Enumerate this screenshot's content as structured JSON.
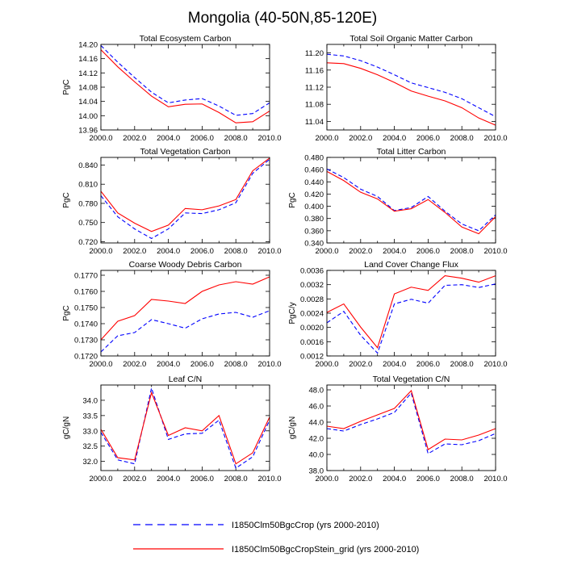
{
  "figure": {
    "title": "Mongolia (40-50N,85-120E)",
    "series_styles": [
      {
        "color": "#0000ff",
        "dash": true
      },
      {
        "color": "#ff0000",
        "dash": false
      }
    ],
    "legend": [
      "I1850Clm50BgcCrop (yrs 2000-2010)",
      "I1850Clm50BgcCropStein_grid (yrs 2000-2010)"
    ]
  },
  "chart_data": [
    {
      "type": "line",
      "title": "Total Ecosystem Carbon",
      "ylabel": "PgC",
      "x": [
        2000,
        2001,
        2002,
        2003,
        2004,
        2005,
        2006,
        2007,
        2008,
        2009,
        2010
      ],
      "xlim": [
        2000,
        2010
      ],
      "xticks": [
        2000,
        2002,
        2004,
        2006,
        2008,
        2010
      ],
      "xtick_labels": [
        "2000.0",
        "2002.0",
        "2004.0",
        "2006.0",
        "2008.0",
        "2010.0"
      ],
      "ylim": [
        13.96,
        14.2
      ],
      "yticks": [
        13.96,
        14.0,
        14.04,
        14.08,
        14.12,
        14.16,
        14.2
      ],
      "ytick_labels": [
        "13.96",
        "14.00",
        "14.04",
        "14.08",
        "14.12",
        "14.16",
        "14.20"
      ],
      "series": [
        {
          "name": "I1850Clm50BgcCrop (yrs 2000-2010)",
          "values": [
            14.197,
            14.15,
            14.107,
            14.066,
            14.036,
            14.044,
            14.048,
            14.027,
            14.001,
            14.006,
            14.036
          ]
        },
        {
          "name": "I1850Clm50BgcCropStein_grid (yrs 2000-2010)",
          "values": [
            14.185,
            14.137,
            14.095,
            14.055,
            14.025,
            14.032,
            14.033,
            14.009,
            13.98,
            13.983,
            14.013
          ]
        }
      ]
    },
    {
      "type": "line",
      "title": "Total Soil Organic Matter Carbon",
      "ylabel": "",
      "x": [
        2000,
        2001,
        2002,
        2003,
        2004,
        2005,
        2006,
        2007,
        2008,
        2009,
        2010
      ],
      "xlim": [
        2000,
        2010
      ],
      "xticks": [
        2000,
        2002,
        2004,
        2006,
        2008,
        2010
      ],
      "xtick_labels": [
        "2000.0",
        "2002.0",
        "2004.0",
        "2006.0",
        "2008.0",
        "2010.0"
      ],
      "ylim": [
        11.02,
        11.22
      ],
      "yticks": [
        11.04,
        11.08,
        11.12,
        11.16,
        11.2
      ],
      "ytick_labels": [
        "11.04",
        "11.08",
        "11.12",
        "11.16",
        "11.20"
      ],
      "series": [
        {
          "name": "I1850Clm50BgcCrop (yrs 2000-2010)",
          "values": [
            11.197,
            11.193,
            11.182,
            11.167,
            11.149,
            11.13,
            11.119,
            11.108,
            11.093,
            11.072,
            11.051
          ]
        },
        {
          "name": "I1850Clm50BgcCropStein_grid (yrs 2000-2010)",
          "values": [
            11.177,
            11.175,
            11.164,
            11.149,
            11.131,
            11.111,
            11.099,
            11.088,
            11.072,
            11.048,
            11.031
          ]
        }
      ]
    },
    {
      "type": "line",
      "title": "Total Vegetation Carbon",
      "ylabel": "PgC",
      "x": [
        2000,
        2001,
        2002,
        2003,
        2004,
        2005,
        2006,
        2007,
        2008,
        2009,
        2010
      ],
      "xlim": [
        2000,
        2010
      ],
      "xticks": [
        2000,
        2002,
        2004,
        2006,
        2008,
        2010
      ],
      "xtick_labels": [
        "2000.0",
        "2002.0",
        "2004.0",
        "2006.0",
        "2008.0",
        "2010.0"
      ],
      "ylim": [
        0.718,
        0.852
      ],
      "yticks": [
        0.72,
        0.75,
        0.78,
        0.81,
        0.84
      ],
      "ytick_labels": [
        "0.720",
        "0.750",
        "0.780",
        "0.810",
        "0.840"
      ],
      "series": [
        {
          "name": "I1850Clm50BgcCrop (yrs 2000-2010)",
          "values": [
            0.792,
            0.759,
            0.74,
            0.725,
            0.74,
            0.765,
            0.764,
            0.77,
            0.781,
            0.827,
            0.849
          ]
        },
        {
          "name": "I1850Clm50BgcCropStein_grid (yrs 2000-2010)",
          "values": [
            0.799,
            0.765,
            0.749,
            0.736,
            0.746,
            0.772,
            0.77,
            0.776,
            0.786,
            0.831,
            0.851
          ]
        }
      ]
    },
    {
      "type": "line",
      "title": "Total Litter Carbon",
      "ylabel": "PgC",
      "x": [
        2000,
        2001,
        2002,
        2003,
        2004,
        2005,
        2006,
        2007,
        2008,
        2009,
        2010
      ],
      "xlim": [
        2000,
        2010
      ],
      "xticks": [
        2000,
        2002,
        2004,
        2006,
        2008,
        2010
      ],
      "xtick_labels": [
        "2000.0",
        "2002.0",
        "2004.0",
        "2006.0",
        "2008.0",
        "2010.0"
      ],
      "ylim": [
        0.34,
        0.48
      ],
      "yticks": [
        0.34,
        0.36,
        0.38,
        0.4,
        0.42,
        0.44,
        0.46,
        0.48
      ],
      "ytick_labels": [
        "0.340",
        "0.360",
        "0.380",
        "0.400",
        "0.420",
        "0.440",
        "0.460",
        "0.480"
      ],
      "series": [
        {
          "name": "I1850Clm50BgcCrop (yrs 2000-2010)",
          "values": [
            0.461,
            0.447,
            0.428,
            0.416,
            0.393,
            0.398,
            0.416,
            0.392,
            0.371,
            0.36,
            0.386
          ]
        },
        {
          "name": "I1850Clm50BgcCropStein_grid (yrs 2000-2010)",
          "values": [
            0.457,
            0.442,
            0.423,
            0.412,
            0.392,
            0.396,
            0.411,
            0.39,
            0.366,
            0.355,
            0.383
          ]
        }
      ]
    },
    {
      "type": "line",
      "title": "Coarse Woody Debris Carbon",
      "ylabel": "PgC",
      "x": [
        2000,
        2001,
        2002,
        2003,
        2004,
        2005,
        2006,
        2007,
        2008,
        2009,
        2010
      ],
      "xlim": [
        2000,
        2010
      ],
      "xticks": [
        2000,
        2002,
        2004,
        2006,
        2008,
        2010
      ],
      "xtick_labels": [
        "2000.0",
        "2002.0",
        "2004.0",
        "2006.0",
        "2008.0",
        "2010.0"
      ],
      "ylim": [
        0.172,
        0.1773
      ],
      "yticks": [
        0.172,
        0.173,
        0.174,
        0.175,
        0.176,
        0.177
      ],
      "ytick_labels": [
        "0.1720",
        "0.1730",
        "0.1740",
        "0.1750",
        "0.1760",
        "0.1770"
      ],
      "series": [
        {
          "name": "I1850Clm50BgcCrop (yrs 2000-2010)",
          "values": [
            0.17225,
            0.17325,
            0.17345,
            0.17425,
            0.174,
            0.17372,
            0.1743,
            0.1746,
            0.1747,
            0.1744,
            0.1748
          ]
        },
        {
          "name": "I1850Clm50BgcCropStein_grid (yrs 2000-2010)",
          "values": [
            0.173,
            0.17415,
            0.1745,
            0.1755,
            0.1754,
            0.17525,
            0.176,
            0.1764,
            0.1766,
            0.17645,
            0.1769
          ]
        }
      ]
    },
    {
      "type": "line",
      "title": "Land Cover Change Flux",
      "ylabel": "PgC/y",
      "x": [
        2000,
        2001,
        2002,
        2003,
        2004,
        2005,
        2006,
        2007,
        2008,
        2009,
        2010
      ],
      "xlim": [
        2000,
        2010
      ],
      "xticks": [
        2000,
        2002,
        2004,
        2006,
        2008,
        2010
      ],
      "xtick_labels": [
        "2000.0",
        "2002.0",
        "2004.0",
        "2006.0",
        "2008.0",
        "2010.0"
      ],
      "ylim": [
        0.0012,
        0.0036
      ],
      "yticks": [
        0.0012,
        0.0016,
        0.002,
        0.0024,
        0.0028,
        0.0032,
        0.0036
      ],
      "ytick_labels": [
        "0.0012",
        "0.0016",
        "0.0020",
        "0.0024",
        "0.0028",
        "0.0032",
        "0.0036"
      ],
      "series": [
        {
          "name": "I1850Clm50BgcCrop (yrs 2000-2010)",
          "values": [
            0.00213,
            0.00245,
            0.00178,
            0.00128,
            0.00266,
            0.00279,
            0.00268,
            0.00318,
            0.0032,
            0.00312,
            0.00322
          ]
        },
        {
          "name": "I1850Clm50BgcCropStein_grid (yrs 2000-2010)",
          "values": [
            0.00242,
            0.00266,
            0.00201,
            0.00143,
            0.00294,
            0.00313,
            0.00304,
            0.00345,
            0.00338,
            0.00327,
            0.00345
          ]
        }
      ]
    },
    {
      "type": "line",
      "title": "Leaf C/N",
      "ylabel": "gC/gN",
      "x": [
        2000,
        2001,
        2002,
        2003,
        2004,
        2005,
        2006,
        2007,
        2008,
        2009,
        2010
      ],
      "xlim": [
        2000,
        2010
      ],
      "xticks": [
        2000,
        2002,
        2004,
        2006,
        2008,
        2010
      ],
      "xtick_labels": [
        "2000.0",
        "2002.0",
        "2004.0",
        "2006.0",
        "2008.0",
        "2010.0"
      ],
      "ylim": [
        31.7,
        34.5
      ],
      "yticks": [
        32.0,
        32.5,
        33.0,
        33.5,
        34.0
      ],
      "ytick_labels": [
        "32.0",
        "32.5",
        "33.0",
        "33.5",
        "34.0"
      ],
      "series": [
        {
          "name": "I1850Clm50BgcCrop (yrs 2000-2010)",
          "values": [
            32.95,
            32.05,
            31.92,
            34.4,
            32.72,
            32.9,
            32.92,
            33.35,
            31.78,
            32.15,
            33.35
          ]
        },
        {
          "name": "I1850Clm50BgcCropStein_grid (yrs 2000-2010)",
          "values": [
            33.05,
            32.12,
            32.05,
            34.25,
            32.85,
            33.1,
            33.0,
            33.5,
            31.92,
            32.28,
            33.45
          ]
        }
      ]
    },
    {
      "type": "line",
      "title": "Total Vegetation C/N",
      "ylabel": "gC/gN",
      "x": [
        2000,
        2001,
        2002,
        2003,
        2004,
        2005,
        2006,
        2007,
        2008,
        2009,
        2010
      ],
      "xlim": [
        2000,
        2010
      ],
      "xticks": [
        2000,
        2002,
        2004,
        2006,
        2008,
        2010
      ],
      "xtick_labels": [
        "2000.0",
        "2002.0",
        "2004.0",
        "2006.0",
        "2008.0",
        "2010.0"
      ],
      "ylim": [
        38.0,
        48.6
      ],
      "yticks": [
        38.0,
        40.0,
        42.0,
        44.0,
        46.0,
        48.0
      ],
      "ytick_labels": [
        "38.0",
        "40.0",
        "42.0",
        "44.0",
        "46.0",
        "48.0"
      ],
      "series": [
        {
          "name": "I1850Clm50BgcCrop (yrs 2000-2010)",
          "values": [
            43.2,
            42.9,
            43.7,
            44.4,
            45.2,
            47.6,
            40.1,
            41.3,
            41.2,
            41.7,
            42.6
          ]
        },
        {
          "name": "I1850Clm50BgcCropStein_grid (yrs 2000-2010)",
          "values": [
            43.5,
            43.2,
            44.1,
            44.9,
            45.7,
            47.9,
            40.6,
            41.9,
            41.8,
            42.4,
            43.2
          ]
        }
      ]
    }
  ]
}
